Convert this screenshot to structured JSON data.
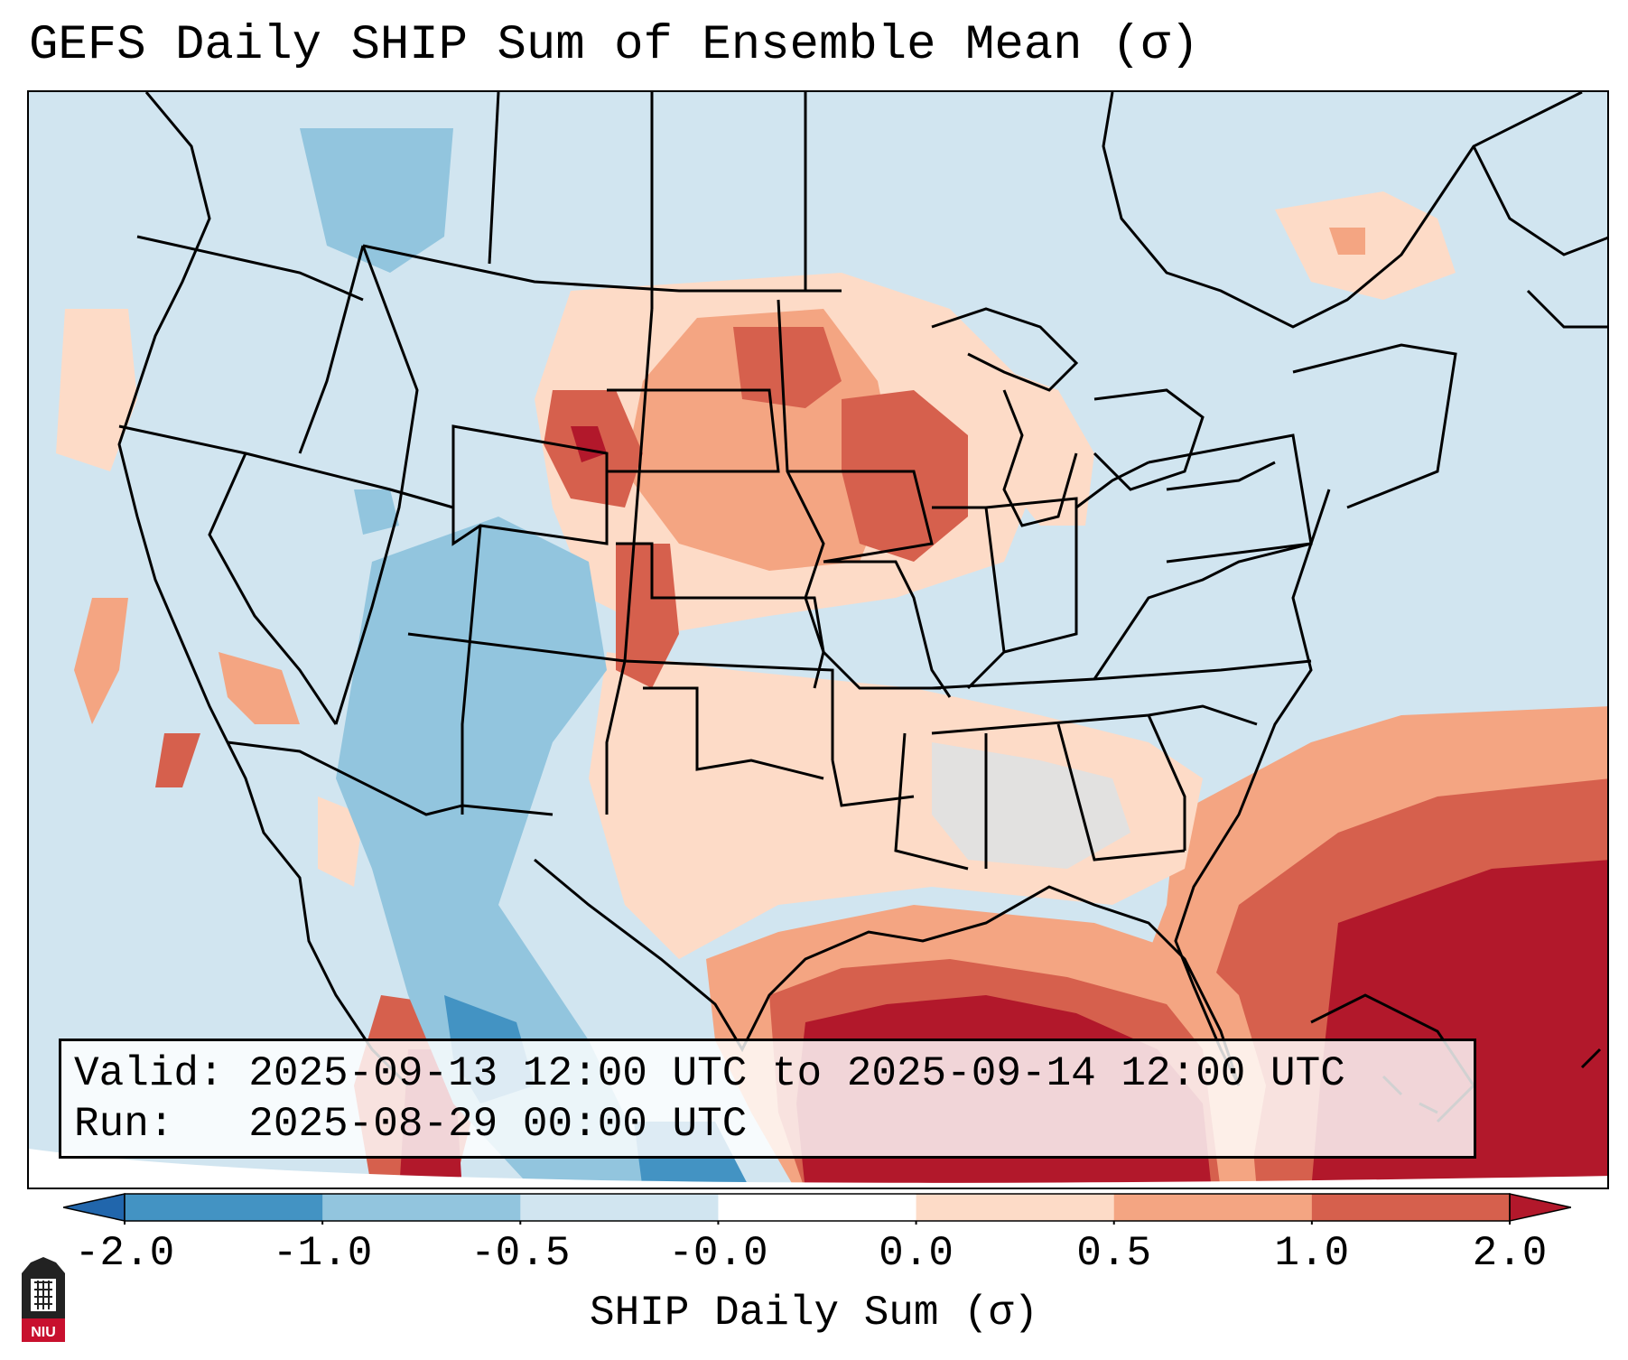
{
  "title": "GEFS Daily SHIP Sum of Ensemble Mean (σ)",
  "info": {
    "valid_line": "Valid: 2025-09-13 12:00 UTC to 2025-09-14 12:00 UTC",
    "run_line": "Run:   2025-08-29 00:00 UTC"
  },
  "colorbar": {
    "label": "SHIP Daily Sum (σ)",
    "ticks": [
      "-2.0",
      "-1.0",
      "-0.5",
      "-0.0",
      "0.0",
      "0.5",
      "1.0",
      "2.0"
    ],
    "colors": [
      "#2166ac",
      "#4393c3",
      "#92c5de",
      "#d1e5f0",
      "#ffffff",
      "#fddbc7",
      "#f4a582",
      "#d6604d",
      "#b2182b"
    ],
    "extend": "both"
  },
  "logo_text": "NIU",
  "map": {
    "region": "Continental United States",
    "field": "SHIP daily sum anomaly (σ)",
    "background_color": "#d1e5f0",
    "highlights": [
      {
        "area": "Gulf of Mexico and western Atlantic",
        "sigma_class": "> 2.0",
        "color": "#b2182b"
      },
      {
        "area": "Northern and central Plains",
        "sigma_class": "0.5 to 2.0",
        "color": "#d6604d"
      },
      {
        "area": "Southwest US and northwest Mexico",
        "sigma_class": "-0.5 to -2.0",
        "color": "#92c5de"
      }
    ]
  }
}
